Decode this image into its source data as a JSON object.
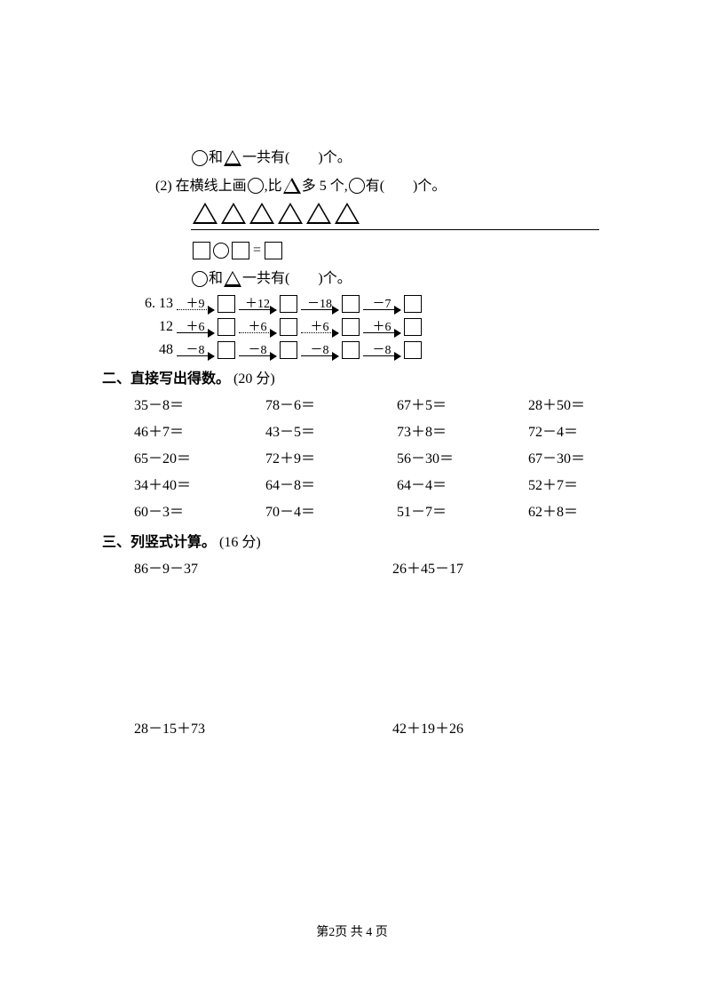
{
  "q5": {
    "line1_a": "和",
    "line1_b": "一共有(",
    "line1_c": ")个。",
    "line2_a": "(2) 在横线上画",
    "line2_b": ",比",
    "line2_c": "多 5 个,",
    "line2_d": "有(",
    "line2_e": ")个。",
    "eq_equals": "=",
    "total_a": "和",
    "total_b": "一共有(",
    "total_c": ")个。",
    "triangle_count": 6
  },
  "q6": {
    "label": "6.",
    "rows": [
      {
        "start": "13",
        "ops": [
          "＋9",
          "＋12",
          "－18",
          "－7"
        ],
        "dotted": [
          true,
          false,
          false,
          false
        ]
      },
      {
        "start": "12",
        "ops": [
          "＋6",
          "＋6",
          "＋6",
          "＋6"
        ],
        "dotted": [
          false,
          true,
          true,
          false
        ]
      },
      {
        "start": "48",
        "ops": [
          "－8",
          "－8",
          "－8",
          "－8"
        ],
        "dotted": [
          false,
          false,
          false,
          false
        ]
      }
    ]
  },
  "section2": {
    "title": "二、直接写出得数。",
    "points": "(20 分)",
    "problems": [
      "35－8＝",
      "78－6＝",
      "67＋5＝",
      "28＋50＝",
      "46＋7＝",
      "43－5＝",
      "73＋8＝",
      "72－4＝",
      "65－20＝",
      "72＋9＝",
      "56－30＝",
      "67－30＝",
      "34＋40＝",
      "64－8＝",
      "64－4＝",
      "52＋7＝",
      "60－3＝",
      "70－4＝",
      "51－7＝",
      "62＋8＝"
    ]
  },
  "section3": {
    "title": "三、列竖式计算。",
    "points": "(16 分)",
    "row1": [
      "86－9－37",
      "26＋45－17"
    ],
    "row2": [
      "28－15＋73",
      "42＋19＋26"
    ]
  },
  "footer": "第2页  共 4 页"
}
